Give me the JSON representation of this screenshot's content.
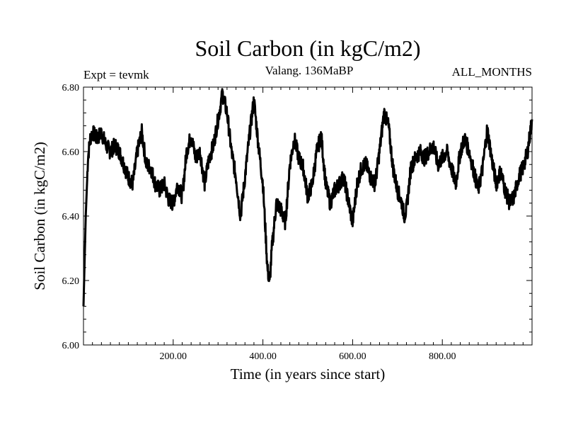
{
  "chart_data": {
    "type": "line",
    "title": "Soil Carbon (in kgC/m2)",
    "subtitle": "Valang. 136MaBP",
    "left_label": "Expt = tevmk",
    "right_label": "ALL_MONTHS",
    "xlabel": "Time (in years since start)",
    "ylabel": "Soil Carbon (in kgC/m2)",
    "xlim": [
      0,
      1000
    ],
    "ylim": [
      6.0,
      6.8
    ],
    "x_ticks": [
      "200.00",
      "400.00",
      "600.00",
      "800.00"
    ],
    "x_tick_values": [
      200,
      400,
      600,
      800
    ],
    "y_ticks": [
      "6.00",
      "6.20",
      "6.40",
      "6.60",
      "6.80"
    ],
    "y_tick_values": [
      6.0,
      6.2,
      6.4,
      6.6,
      6.8
    ],
    "series": [
      {
        "name": "Soil Carbon",
        "x": [
          0,
          5,
          10,
          15,
          20,
          30,
          40,
          50,
          60,
          70,
          80,
          90,
          100,
          110,
          120,
          130,
          140,
          150,
          160,
          170,
          180,
          190,
          200,
          210,
          220,
          230,
          240,
          250,
          260,
          270,
          280,
          290,
          300,
          310,
          320,
          330,
          340,
          350,
          360,
          370,
          380,
          390,
          400,
          410,
          415,
          420,
          430,
          440,
          450,
          460,
          470,
          480,
          490,
          500,
          510,
          520,
          530,
          540,
          550,
          560,
          570,
          580,
          590,
          600,
          610,
          620,
          630,
          640,
          650,
          660,
          670,
          680,
          690,
          700,
          710,
          715,
          720,
          730,
          740,
          750,
          760,
          770,
          780,
          790,
          800,
          810,
          820,
          830,
          840,
          850,
          860,
          870,
          880,
          890,
          900,
          910,
          920,
          930,
          940,
          950,
          960,
          970,
          980,
          990,
          1000
        ],
        "values": [
          6.12,
          6.4,
          6.58,
          6.64,
          6.66,
          6.64,
          6.66,
          6.62,
          6.6,
          6.62,
          6.6,
          6.56,
          6.52,
          6.5,
          6.6,
          6.66,
          6.56,
          6.55,
          6.5,
          6.48,
          6.5,
          6.45,
          6.44,
          6.5,
          6.46,
          6.6,
          6.65,
          6.58,
          6.6,
          6.5,
          6.58,
          6.62,
          6.7,
          6.78,
          6.72,
          6.6,
          6.52,
          6.4,
          6.52,
          6.65,
          6.76,
          6.62,
          6.5,
          6.24,
          6.19,
          6.3,
          6.44,
          6.42,
          6.38,
          6.56,
          6.64,
          6.58,
          6.55,
          6.46,
          6.5,
          6.6,
          6.65,
          6.5,
          6.44,
          6.48,
          6.5,
          6.52,
          6.45,
          6.38,
          6.5,
          6.55,
          6.56,
          6.52,
          6.5,
          6.6,
          6.72,
          6.68,
          6.55,
          6.48,
          6.44,
          6.4,
          6.42,
          6.55,
          6.58,
          6.6,
          6.58,
          6.6,
          6.62,
          6.56,
          6.58,
          6.6,
          6.55,
          6.5,
          6.6,
          6.64,
          6.6,
          6.54,
          6.48,
          6.55,
          6.67,
          6.58,
          6.5,
          6.54,
          6.48,
          6.44,
          6.46,
          6.52,
          6.55,
          6.6,
          6.7
        ]
      }
    ]
  }
}
